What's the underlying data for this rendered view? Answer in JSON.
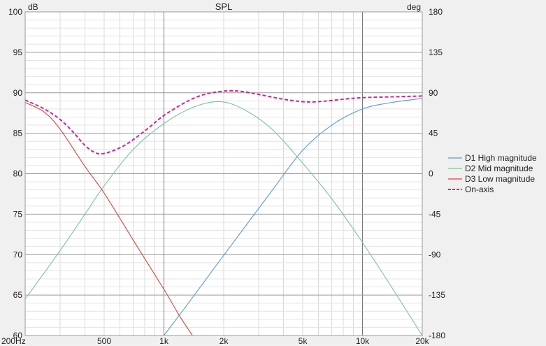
{
  "chart_data": {
    "type": "line",
    "title": "SPL",
    "x_scale": "log",
    "xlim": [
      200,
      20000
    ],
    "ylim_left": [
      60,
      100
    ],
    "ylim_right": [
      -180,
      180
    ],
    "ylabel_left": "dB",
    "ylabel_right": "deg",
    "grid": true,
    "legend_placement": "right",
    "x_tick_labels": [
      {
        "value": 200,
        "label": "200Hz"
      },
      {
        "value": 500,
        "label": "500"
      },
      {
        "value": 1000,
        "label": "1k"
      },
      {
        "value": 2000,
        "label": "2k"
      },
      {
        "value": 5000,
        "label": "5k"
      },
      {
        "value": 10000,
        "label": "10k"
      },
      {
        "value": 20000,
        "label": "20k"
      }
    ],
    "y_left_ticks": [
      "100",
      "95",
      "90",
      "85",
      "80",
      "75",
      "70",
      "65",
      "60"
    ],
    "y_right_ticks": [
      "180",
      "135",
      "90",
      "45",
      "0",
      "-45",
      "-90",
      "-135",
      "-180"
    ],
    "series": [
      {
        "name": "D1 High magnitude",
        "color": "#5b9bd5",
        "dashed": false,
        "x": [
          1000,
          1300,
          1800,
          2500,
          3500,
          5000,
          7000,
          10000,
          14000,
          20000
        ],
        "y": [
          60,
          63.7,
          68.4,
          73.1,
          77.9,
          82.9,
          86.0,
          88.0,
          88.8,
          89.3
        ]
      },
      {
        "name": "D2 Mid magnitude",
        "color": "#7cc4a0",
        "dashed": false,
        "x": [
          200,
          300,
          400,
          500,
          700,
          1000,
          1400,
          1900,
          2500,
          3500,
          5000,
          7000,
          10000,
          14000,
          20000
        ],
        "y": [
          64.5,
          70.5,
          75.0,
          78.5,
          83.0,
          86.2,
          88.2,
          88.9,
          88.0,
          85.5,
          81.3,
          76.9,
          71.5,
          66.0,
          60.0
        ]
      },
      {
        "name": "D3 Low magnitude",
        "color": "#e0413a",
        "dashed": false,
        "x": [
          200,
          250,
          300,
          400,
          500,
          700,
          1000,
          1200,
          1400
        ],
        "y": [
          88.8,
          87.6,
          85.5,
          80.9,
          77.6,
          71.8,
          65.7,
          62.4,
          59.9
        ]
      },
      {
        "name": "On-axis",
        "color": "#d1248f",
        "dashed": true,
        "x": [
          200,
          250,
          300,
          350,
          400,
          450,
          500,
          600,
          700,
          850,
          1000,
          1300,
          1600,
          2000,
          2400,
          3000,
          4000,
          5000,
          6000,
          8000,
          10000,
          14000,
          20000
        ],
        "y": [
          89.1,
          88.0,
          86.7,
          85.1,
          83.5,
          82.6,
          82.5,
          83.2,
          84.2,
          85.8,
          87.2,
          88.9,
          89.8,
          90.2,
          90.2,
          89.8,
          89.2,
          88.9,
          88.9,
          89.2,
          89.4,
          89.5,
          89.6
        ]
      }
    ]
  }
}
